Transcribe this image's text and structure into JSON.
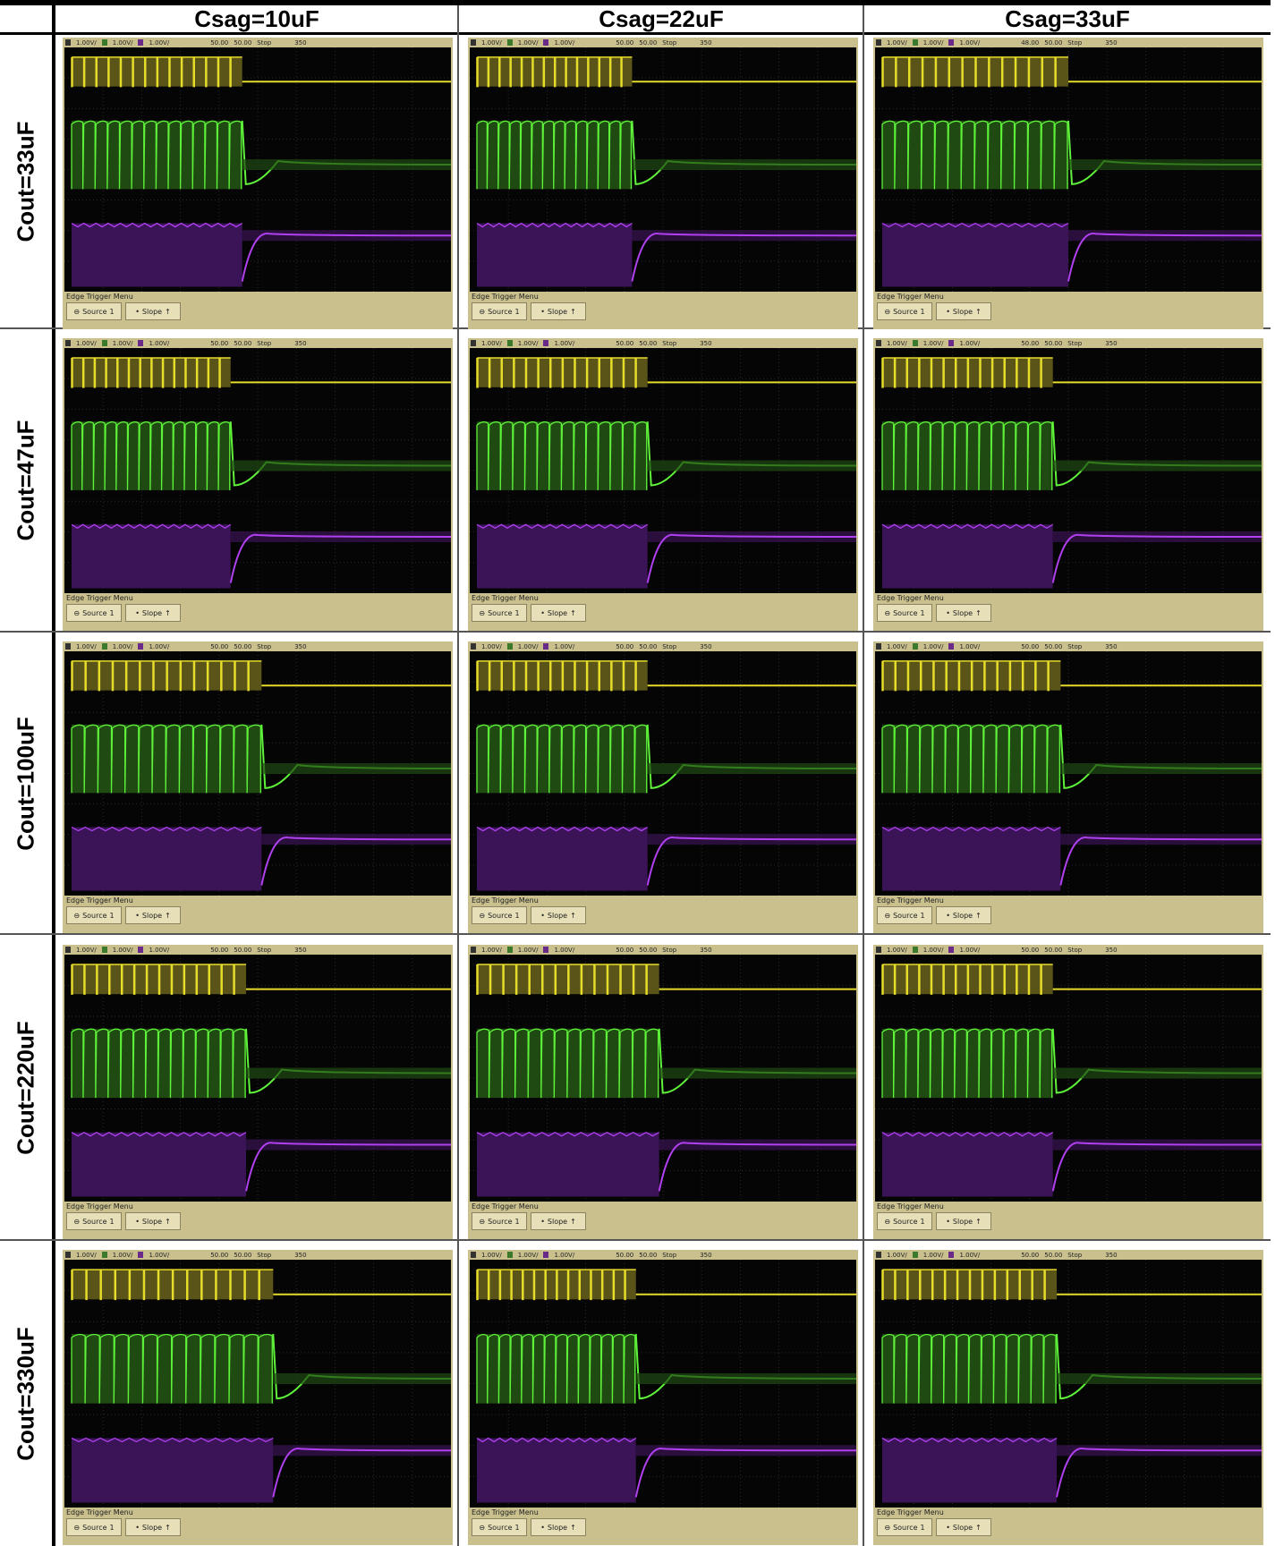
{
  "columns": [
    {
      "label": "Csag=10uF"
    },
    {
      "label": "Csag=22uF"
    },
    {
      "label": "Csag=33uF"
    }
  ],
  "rows": [
    {
      "label": "Cout=33uF"
    },
    {
      "label": "Cout=47uF"
    },
    {
      "label": "Cout=100uF"
    },
    {
      "label": "Cout=220uF"
    },
    {
      "label": "Cout=330uF"
    }
  ],
  "scope": {
    "ch1_scale": "1.00V/",
    "ch2_scale": "1.00V/",
    "ch3_scale": "1.00V/",
    "time_pos": "50.00",
    "time_pos_alt": "48.00",
    "time_scale": "50.00",
    "run_state": "Stop",
    "trigger_level": "350",
    "menu_title": "Edge Trigger Menu",
    "source_label": "Source",
    "source_value": "1",
    "slope_label": "Slope",
    "colors": {
      "ch1": "#e6dc2a",
      "ch2": "#5ff23a",
      "ch3": "#b040f0",
      "bezel": "#c9c08e"
    }
  },
  "panels": [
    {
      "cout": "33uF",
      "csag": "10uF",
      "burst_end": 0.46,
      "time_pos_key": "time_pos"
    },
    {
      "cout": "33uF",
      "csag": "22uF",
      "burst_end": 0.42,
      "time_pos_key": "time_pos"
    },
    {
      "cout": "33uF",
      "csag": "33uF",
      "burst_end": 0.5,
      "time_pos_key": "time_pos_alt"
    },
    {
      "cout": "47uF",
      "csag": "10uF",
      "burst_end": 0.43,
      "time_pos_key": "time_pos"
    },
    {
      "cout": "47uF",
      "csag": "22uF",
      "burst_end": 0.46,
      "time_pos_key": "time_pos"
    },
    {
      "cout": "47uF",
      "csag": "33uF",
      "burst_end": 0.46,
      "time_pos_key": "time_pos"
    },
    {
      "cout": "100uF",
      "csag": "10uF",
      "burst_end": 0.51,
      "time_pos_key": "time_pos"
    },
    {
      "cout": "100uF",
      "csag": "22uF",
      "burst_end": 0.46,
      "time_pos_key": "time_pos"
    },
    {
      "cout": "100uF",
      "csag": "33uF",
      "burst_end": 0.48,
      "time_pos_key": "time_pos"
    },
    {
      "cout": "220uF",
      "csag": "10uF",
      "burst_end": 0.47,
      "time_pos_key": "time_pos"
    },
    {
      "cout": "220uF",
      "csag": "22uF",
      "burst_end": 0.49,
      "time_pos_key": "time_pos"
    },
    {
      "cout": "220uF",
      "csag": "33uF",
      "burst_end": 0.46,
      "time_pos_key": "time_pos"
    },
    {
      "cout": "330uF",
      "csag": "10uF",
      "burst_end": 0.54,
      "time_pos_key": "time_pos"
    },
    {
      "cout": "330uF",
      "csag": "22uF",
      "burst_end": 0.43,
      "time_pos_key": "time_pos"
    },
    {
      "cout": "330uF",
      "csag": "33uF",
      "burst_end": 0.47,
      "time_pos_key": "time_pos"
    }
  ]
}
